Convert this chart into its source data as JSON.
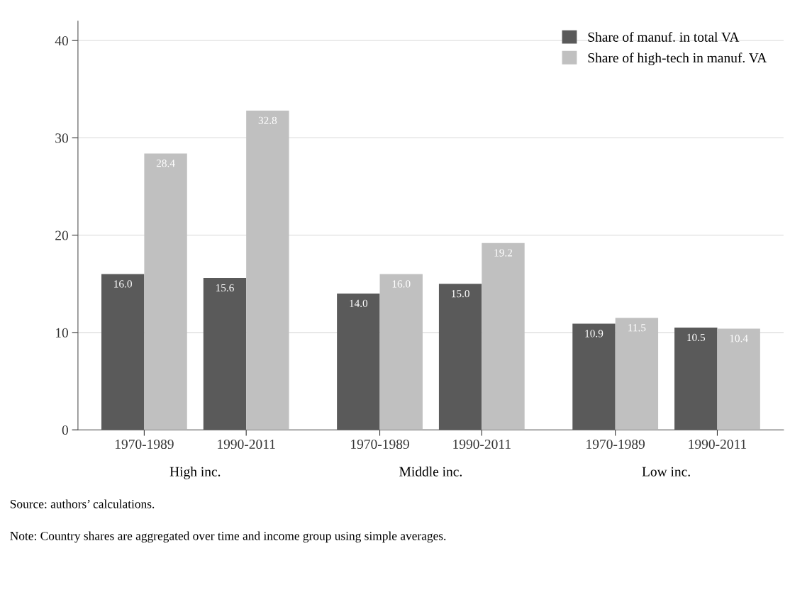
{
  "chart_data": {
    "type": "bar",
    "categories": [
      "1970-1989",
      "1990-2011",
      "1970-1989",
      "1990-2011",
      "1970-1989",
      "1990-2011"
    ],
    "series": [
      {
        "name": "Share of manuf. in total VA",
        "color": "#5a5a5a",
        "values": [
          16.0,
          15.6,
          14.0,
          15.0,
          10.9,
          10.5
        ],
        "value_labels": [
          "16.0",
          "15.6",
          "14.0",
          "15.0",
          "10.9",
          "10.5"
        ]
      },
      {
        "name": "Share of high-tech in manuf. VA",
        "color": "#c0c0c0",
        "values": [
          28.4,
          32.8,
          16.0,
          19.2,
          11.5,
          10.4
        ],
        "value_labels": [
          "28.4",
          "32.8",
          "16.0",
          "19.2",
          "11.5",
          "10.4"
        ]
      }
    ],
    "ylim": [
      0,
      42
    ],
    "yticks": [
      0,
      10,
      20,
      30,
      40
    ],
    "grid": "y",
    "legend": "top right",
    "annotations": [
      "High inc.",
      "Middle inc.",
      "Low inc.",
      "Source: authors’ calculations.",
      "Note: Country shares are aggregated over time and income group using simple averages."
    ]
  }
}
